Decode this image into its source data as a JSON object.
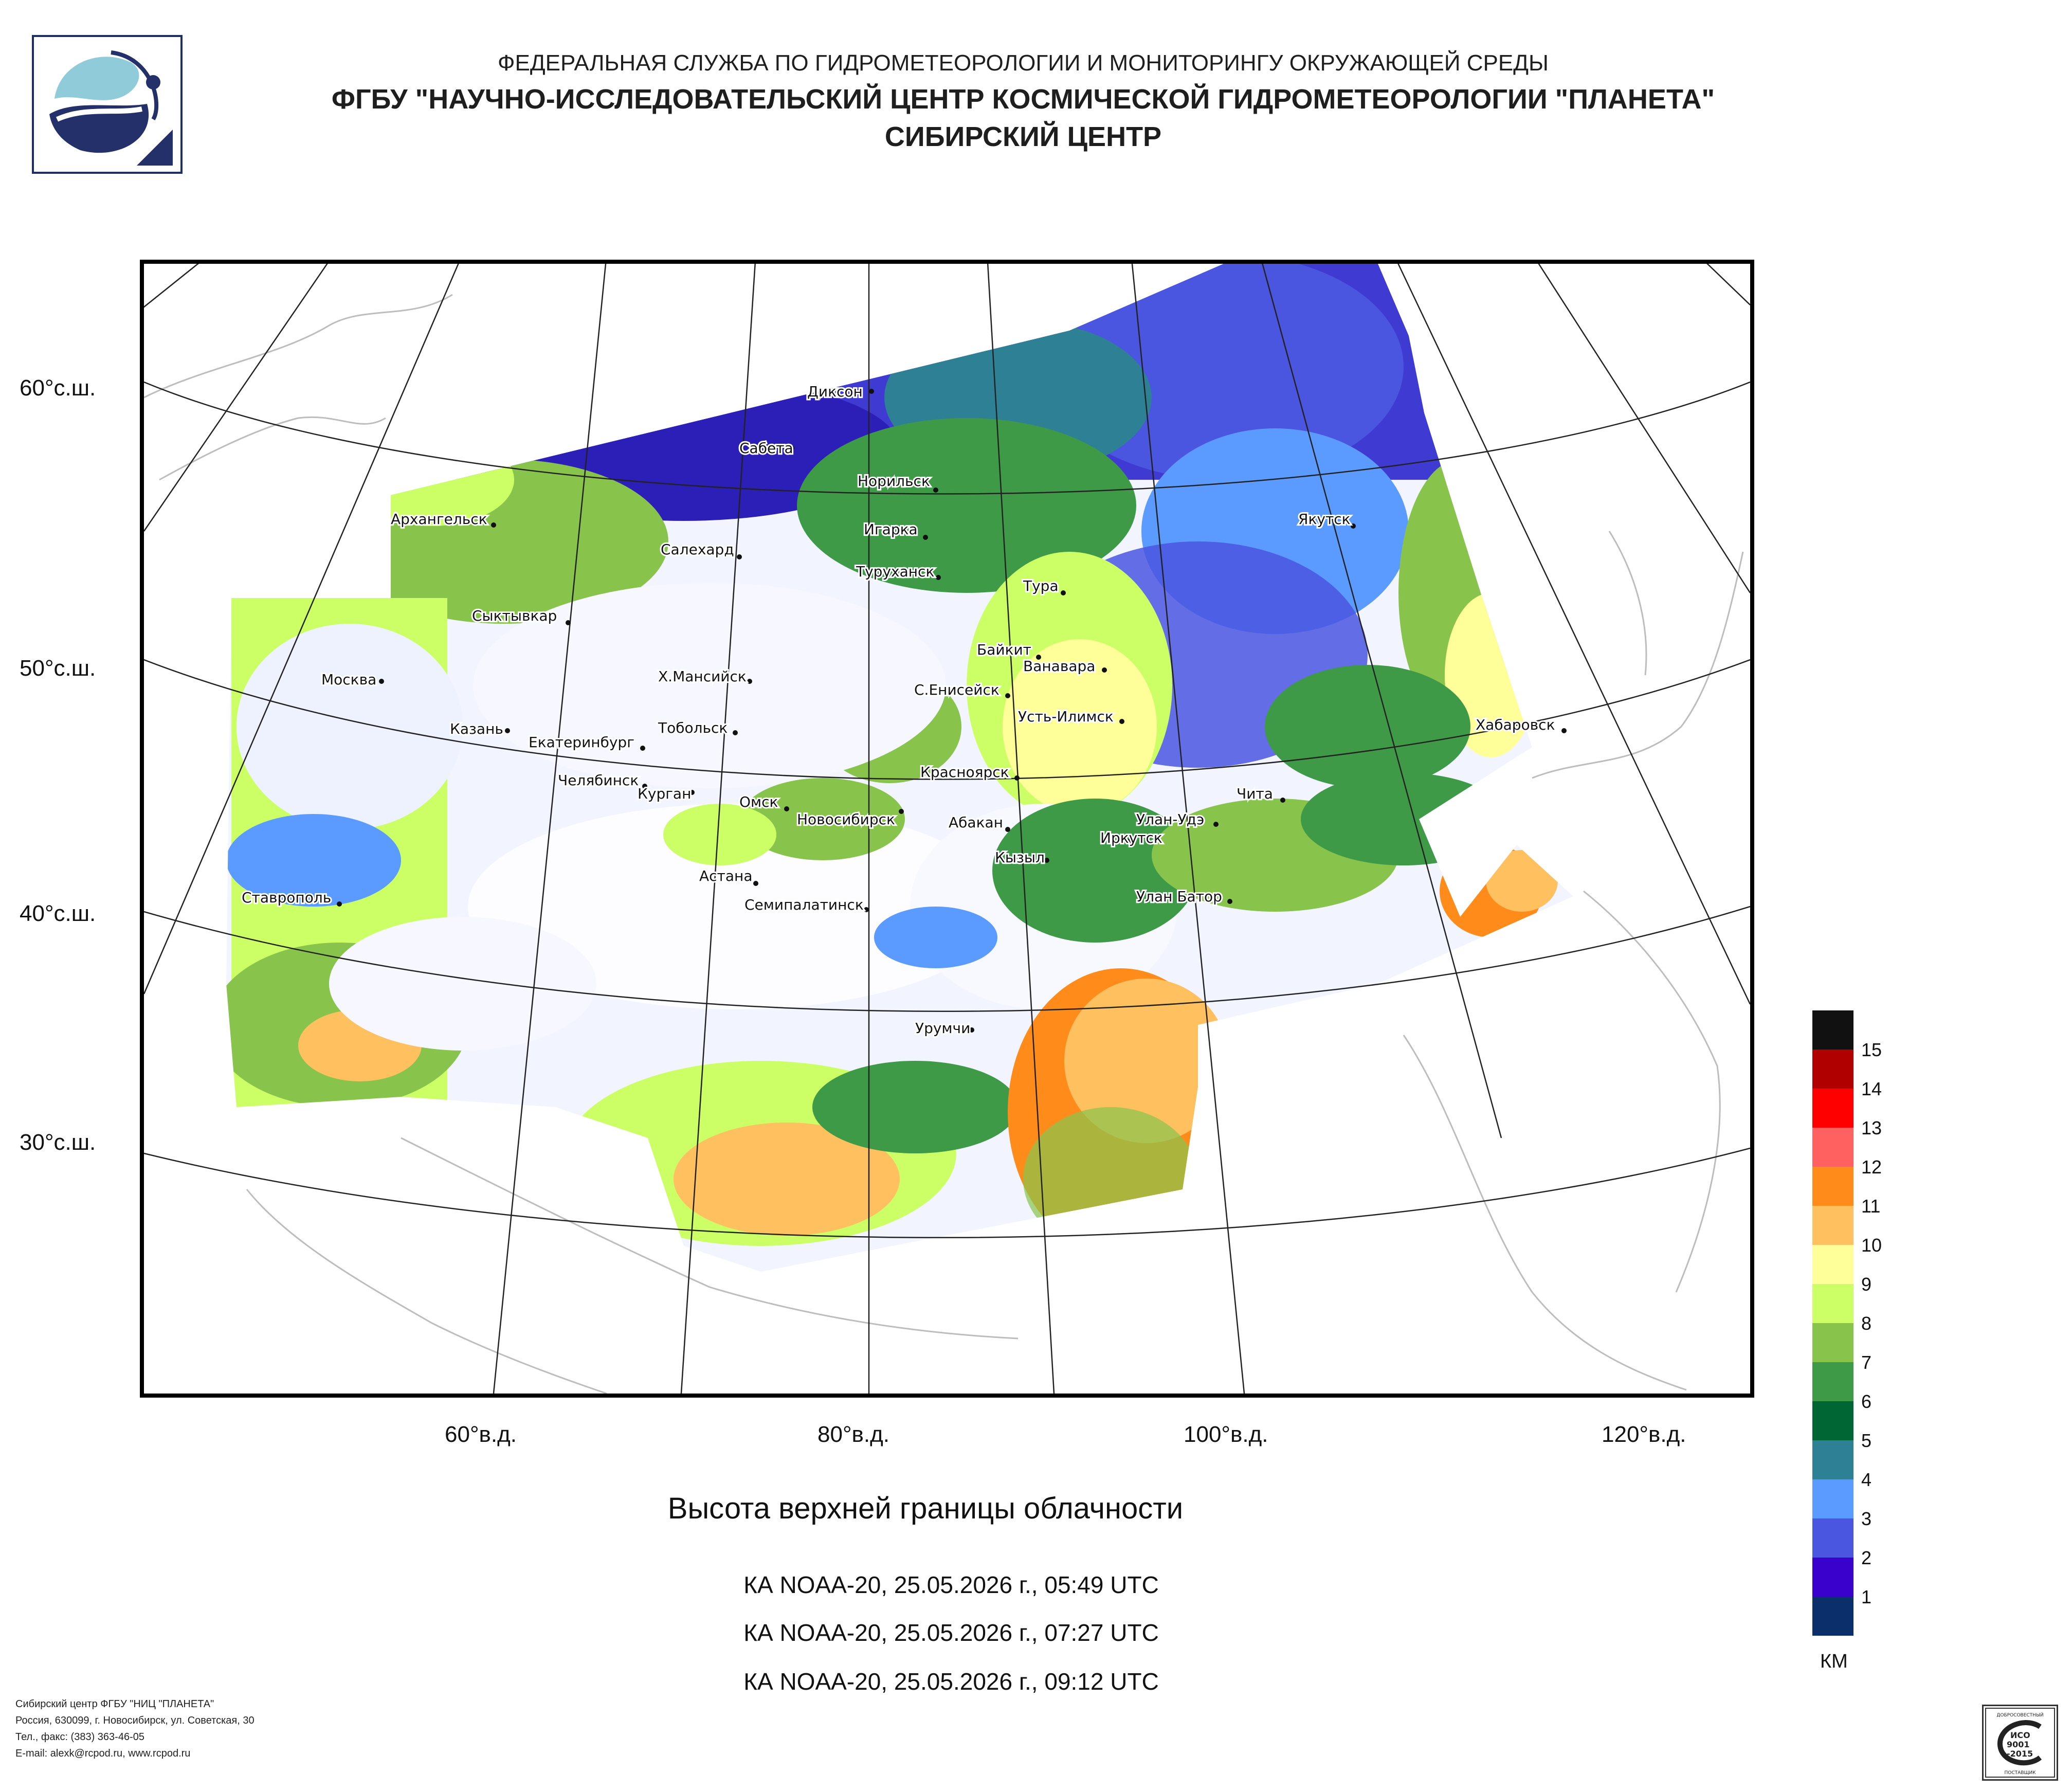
{
  "header": {
    "line1": "ФЕДЕРАЛЬНАЯ СЛУЖБА ПО ГИДРОМЕТЕОРОЛОГИИ И МОНИТОРИНГУ ОКРУЖАЮЩЕЙ СРЕДЫ",
    "line2": "ФГБУ \"НАУЧНО-ИССЛЕДОВАТЕЛЬСКИЙ ЦЕНТР КОСМИЧЕСКОЙ ГИДРОМЕТЕОРОЛОГИИ \"ПЛАНЕТА\"",
    "line3": "СИБИРСКИЙ ЦЕНТР"
  },
  "map": {
    "lat_labels": [
      "60°с.ш.",
      "50°с.ш.",
      "40°с.ш.",
      "30°с.ш."
    ],
    "lon_labels": [
      "60°в.д.",
      "80°в.д.",
      "100°в.д.",
      "120°в.д."
    ],
    "cities": [
      "Диксон",
      "Сабета",
      "Норильск",
      "Архангельск",
      "Игарка",
      "Салехард",
      "Туруханск",
      "Якутск",
      "Тура",
      "Сыктывкар",
      "Байкит",
      "Ванавара",
      "Москва",
      "Х.Мансийск",
      "С.Енисейск",
      "Усть-Илимск",
      "Хабаровск",
      "Казань",
      "Тобольск",
      "Екатеринбург",
      "Красноярск",
      "Челябинск",
      "Курган",
      "Чита",
      "Омск",
      "Новосибирск",
      "Улан-Удэ",
      "Абакан",
      "Иркутск",
      "Кызыл",
      "Астана",
      "Ставрополь",
      "Улан Батор",
      "Семипалатинск",
      "Урумчи"
    ]
  },
  "title": "Высота верхней границы облачности",
  "passes": [
    "КА NOAA-20, 25.05.2026 г., 05:49 UTC",
    "КА NOAA-20, 25.05.2026 г., 07:27 UTC",
    "КА NOAA-20, 25.05.2026 г., 09:12 UTC"
  ],
  "legend": {
    "unit": "КМ",
    "colors_top_to_bottom": [
      "#111111",
      "#b00000",
      "#ff0000",
      "#ff6060",
      "#ff8c1a",
      "#ffc060",
      "#ffff99",
      "#ccff66",
      "#88c44c",
      "#3f9a48",
      "#006633",
      "#2e8095",
      "#5b9bff",
      "#4a55e0",
      "#3a00cc",
      "#0a2f6b"
    ],
    "labels": [
      "15",
      "14",
      "13",
      "12",
      "11",
      "10",
      "9",
      "8",
      "7",
      "6",
      "5",
      "4",
      "3",
      "2",
      "1"
    ]
  },
  "footer": {
    "line1": "Сибирский центр ФГБУ \"НИЦ \"ПЛАНЕТА\"",
    "line2": "Россия, 630099, г. Новосибирск, ул. Советская, 30",
    "line3": "Тел., факс: (383) 363-46-05",
    "line4": "E-mail: alexk@rcpod.ru, www.rcpod.ru"
  },
  "iso_badge": {
    "top": "ДОБРОСОВЕСТНЫЙ",
    "line1": "ИСО",
    "line2": "9001",
    "line3": "-2015",
    "bottom": "ПОСТАВЩИК"
  }
}
